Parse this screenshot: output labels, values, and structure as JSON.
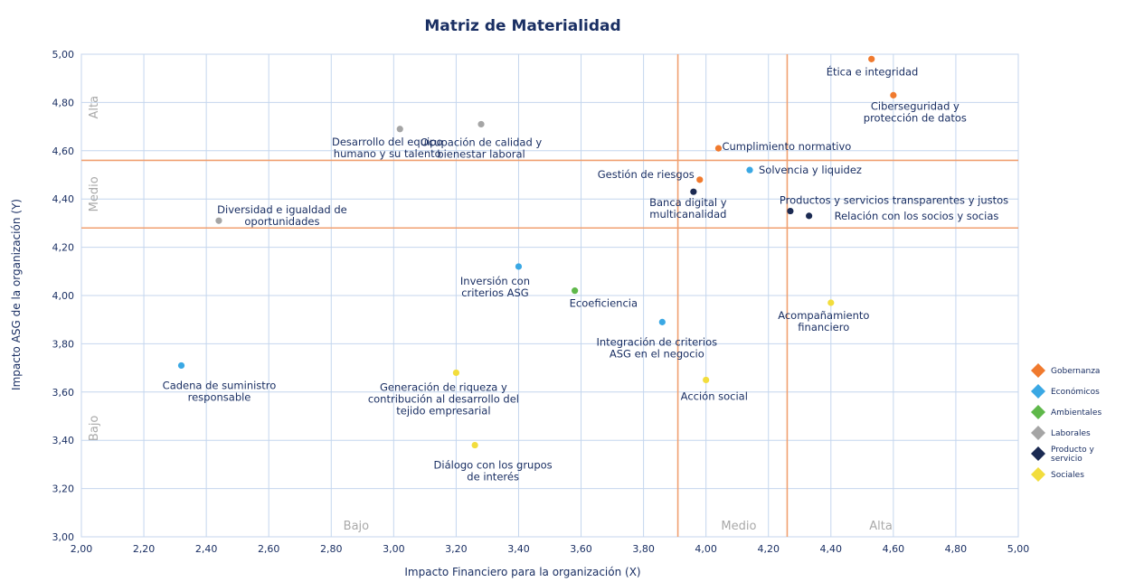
{
  "chart_data": {
    "type": "scatter",
    "title": "Matriz de Materialidad",
    "xlabel": "Impacto Financiero para la organización (X)",
    "ylabel": "Impacto ASG de la organización (Y)",
    "xlim": [
      2.0,
      5.0
    ],
    "ylim": [
      3.0,
      5.0
    ],
    "x_ticks": [
      "2,00",
      "2,20",
      "2,40",
      "2,60",
      "2,80",
      "3,00",
      "3,20",
      "3,40",
      "3,60",
      "3,80",
      "4,00",
      "4,20",
      "4,40",
      "4,60",
      "4,80",
      "5,00"
    ],
    "y_ticks": [
      "3,00",
      "3,20",
      "3,40",
      "3,60",
      "3,80",
      "4,00",
      "4,20",
      "4,40",
      "4,60",
      "4,80",
      "5,00"
    ],
    "grid": true,
    "thresholds": {
      "x": [
        3.91,
        4.26
      ],
      "y": [
        4.28,
        4.56
      ],
      "color": "#f0a070"
    },
    "x_zones": [
      "Bajo",
      "Medio",
      "Alta"
    ],
    "y_zones": [
      "Alta",
      "Medio",
      "Bajo"
    ],
    "legend_position": "right",
    "series": [
      {
        "name": "Gobernanza",
        "color": "#f07a2e",
        "points": [
          {
            "label": "Ética e integridad",
            "x": 4.53,
            "y": 4.98
          },
          {
            "label": "Ciberseguridad y\nprotección de datos",
            "x": 4.6,
            "y": 4.83
          },
          {
            "label": "Cumplimiento normativo",
            "x": 4.04,
            "y": 4.61
          },
          {
            "label": "Gestión de riesgos",
            "x": 3.98,
            "y": 4.48
          }
        ]
      },
      {
        "name": "Económicos",
        "color": "#3aa8e4",
        "points": [
          {
            "label": "Solvencia y liquidez",
            "x": 4.14,
            "y": 4.52
          },
          {
            "label": "Inversión con\ncriterios ASG",
            "x": 3.4,
            "y": 4.12
          },
          {
            "label": "Integración de criterios\nASG en el negocio",
            "x": 3.86,
            "y": 3.89
          },
          {
            "label": "Cadena de suministro\nresponsable",
            "x": 2.32,
            "y": 3.71
          }
        ]
      },
      {
        "name": "Ambientales",
        "color": "#5fb84a",
        "points": [
          {
            "label": "Ecoeficiencia",
            "x": 3.58,
            "y": 4.02
          }
        ]
      },
      {
        "name": "Laborales",
        "color": "#a5a5a5",
        "points": [
          {
            "label": "Desarrollo del equipo\nhumano y su talento",
            "x": 3.02,
            "y": 4.69
          },
          {
            "label": "Ocupación de calidad y\nbienestar laboral",
            "x": 3.28,
            "y": 4.71
          },
          {
            "label": "Diversidad e igualdad de\noportunidades",
            "x": 2.44,
            "y": 4.31
          }
        ]
      },
      {
        "name": "Producto y\nservicio",
        "color": "#1b2a52",
        "points": [
          {
            "label": "Banca digital y\nmulticanalidad",
            "x": 3.96,
            "y": 4.43
          },
          {
            "label": "Productos y servicios transparentes y justos",
            "x": 4.27,
            "y": 4.35
          },
          {
            "label": "Relación con los socios y socias",
            "x": 4.33,
            "y": 4.33
          }
        ]
      },
      {
        "name": "Sociales",
        "color": "#f2dd3d",
        "points": [
          {
            "label": "Acompañamiento\nfinanciero",
            "x": 4.4,
            "y": 3.97
          },
          {
            "label": "Acción social",
            "x": 4.0,
            "y": 3.65
          },
          {
            "label": "Generación de riqueza y\ncontribución al desarrollo del\ntejido empresarial",
            "x": 3.2,
            "y": 3.68
          },
          {
            "label": "Diálogo con los grupos\nde interés",
            "x": 3.26,
            "y": 3.38
          }
        ]
      }
    ]
  }
}
